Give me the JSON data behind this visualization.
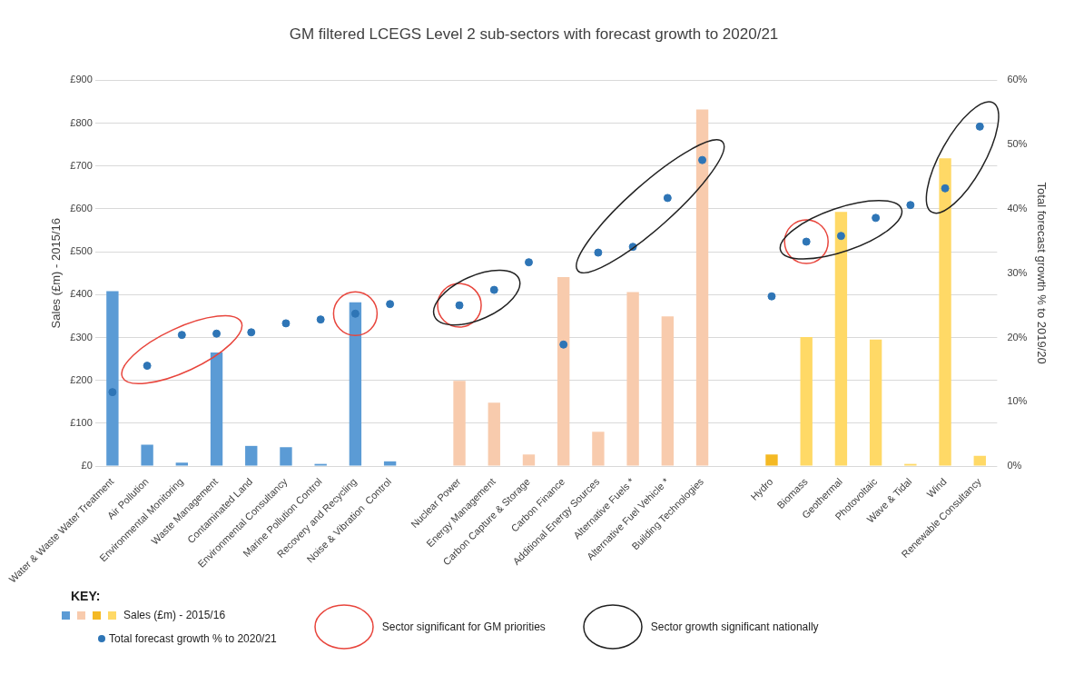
{
  "chart_data": {
    "type": "bar",
    "title": "GM filtered LCEGS Level 2 sub-sectors with forecast growth to 2020/21",
    "categories": [
      "Water & Waste Water Treatment",
      "Air Pollution",
      "Environmental Monitoring",
      "Waste Management",
      "Contaminated Land",
      "Environmental Consultancy",
      "Marine Pollution Control",
      "Recovery and Recycling",
      "Noise & Vibration  Control",
      null,
      "Nuclear Power",
      "Energy Management",
      "Carbon Capture & Storage",
      "Carbon Finance",
      "Additional Energy Sources",
      "Alternative Fuels *",
      "Alternative Fuel Vehicle *",
      "Building Technologies",
      null,
      "Hydro",
      "Biomass",
      "Geothermal",
      "Photovoltaic",
      "Wave & Tidal",
      "Wind",
      "Renewable Consultancy"
    ],
    "series": [
      {
        "name": "Sales (£m) - 2015/16",
        "colors": [
          "#5b9bd5",
          "#5b9bd5",
          "#5b9bd5",
          "#5b9bd5",
          "#5b9bd5",
          "#5b9bd5",
          "#5b9bd5",
          "#5b9bd5",
          "#5b9bd5",
          null,
          "#f8cbad",
          "#f8cbad",
          "#f8cbad",
          "#f8cbad",
          "#f8cbad",
          "#f8cbad",
          "#f8cbad",
          "#f8cbad",
          null,
          "#f4b924",
          "#ffd966",
          "#ffd966",
          "#ffd966",
          "#ffd966",
          "#ffd966",
          "#ffd966"
        ],
        "values": [
          408,
          50,
          8,
          265,
          47,
          44,
          5,
          382,
          11,
          null,
          199,
          148,
          27,
          441,
          80,
          406,
          349,
          832,
          null,
          27,
          301,
          593,
          295,
          5,
          718,
          24
        ]
      },
      {
        "name": "Total forecast growth % to 2020/21",
        "type": "scatter",
        "axis": "y2",
        "color": "#2e75b6",
        "values": [
          11.5,
          15.6,
          20.4,
          20.6,
          20.8,
          22.2,
          22.8,
          23.7,
          25.2,
          null,
          25.0,
          27.4,
          31.7,
          18.9,
          33.2,
          34.1,
          41.7,
          47.6,
          null,
          26.4,
          34.9,
          35.8,
          38.6,
          40.6,
          43.2,
          52.8
        ]
      }
    ],
    "ylabel": "Sales (£m) - 2015/16",
    "y2label": "Total forecast growth % to 2019/20",
    "ylim": [
      0,
      900
    ],
    "yticks": [
      {
        "value": 0,
        "label": "£0"
      },
      {
        "value": 100,
        "label": "£100"
      },
      {
        "value": 200,
        "label": "£200"
      },
      {
        "value": 300,
        "label": "£300"
      },
      {
        "value": 400,
        "label": "£400"
      },
      {
        "value": 500,
        "label": "£500"
      },
      {
        "value": 600,
        "label": "£600"
      },
      {
        "value": 700,
        "label": "£700"
      },
      {
        "value": 800,
        "label": "£800"
      },
      {
        "value": 900,
        "label": "£900"
      }
    ],
    "y2lim": [
      0,
      60
    ],
    "y2ticks": [
      {
        "value": 0,
        "label": "0%"
      },
      {
        "value": 10,
        "label": "10%"
      },
      {
        "value": 20,
        "label": "20%"
      },
      {
        "value": 30,
        "label": "30%"
      },
      {
        "value": 40,
        "label": "40%"
      },
      {
        "value": 50,
        "label": "50%"
      },
      {
        "value": 60,
        "label": "60%"
      }
    ],
    "grid": "y",
    "legend": "bottom left",
    "marker": "circle",
    "annotations": [
      "KEY:",
      "Sector significant for GM priorities",
      "Sector growth significant nationally"
    ]
  }
}
